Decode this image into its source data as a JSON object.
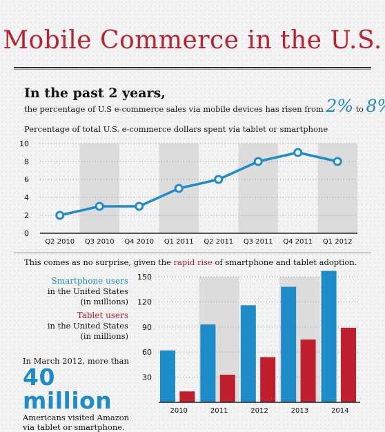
{
  "title": "Mobile Commerce in the U.S.",
  "intro": {
    "heading": "In the past 2 years,",
    "sentence": "the percentage of U.S e-commerce sales via mobile devices has risen from",
    "from_value": "2%",
    "to_word": "to",
    "to_value": "8%."
  },
  "chart1_caption": "Percentage of total U.S. e-commerce dollars spent via tablet or smartphone",
  "adoption": {
    "prefix": "This comes as no surprise, given the ",
    "highlight": "rapid rise",
    "suffix": " of smartphone and tablet adoption."
  },
  "legend": {
    "smartphone_name": "Smartphone users",
    "smartphone_desc1": "in the United States",
    "smartphone_desc2": "(in millions)",
    "tablet_name": "Tablet users",
    "tablet_desc1": "in the United States",
    "tablet_desc2": "(in millions)"
  },
  "stat": {
    "line1": "In March 2012, more than",
    "big": "40 million",
    "line2": "Americans visited Amazon",
    "line3": "via tablet or smartphone."
  },
  "colors": {
    "accent_red": "#c0202e",
    "accent_blue": "#1d8cc8"
  },
  "chart_data": [
    {
      "type": "line",
      "title": "Percentage of total U.S. e-commerce dollars spent via tablet or smartphone",
      "categories": [
        "Q2 2010",
        "Q3 2010",
        "Q4 2010",
        "Q1 2011",
        "Q2 2011",
        "Q3 2011",
        "Q4 2011",
        "Q1 2012"
      ],
      "values": [
        2,
        3,
        3,
        5,
        6,
        8,
        9,
        8
      ],
      "ylim": [
        0,
        10
      ],
      "yticks": [
        0,
        2,
        4,
        6,
        8,
        10
      ],
      "grid": true
    },
    {
      "type": "bar",
      "categories": [
        "2010",
        "2011",
        "2012",
        "2013",
        "2014"
      ],
      "series": [
        {
          "name": "Smartphone users",
          "values": [
            62,
            93,
            116,
            138,
            157
          ]
        },
        {
          "name": "Tablet users",
          "values": [
            13,
            33,
            54,
            75,
            89
          ]
        }
      ],
      "ylim": [
        0,
        150
      ],
      "yticks": [
        30,
        60,
        90,
        120,
        150
      ]
    }
  ]
}
